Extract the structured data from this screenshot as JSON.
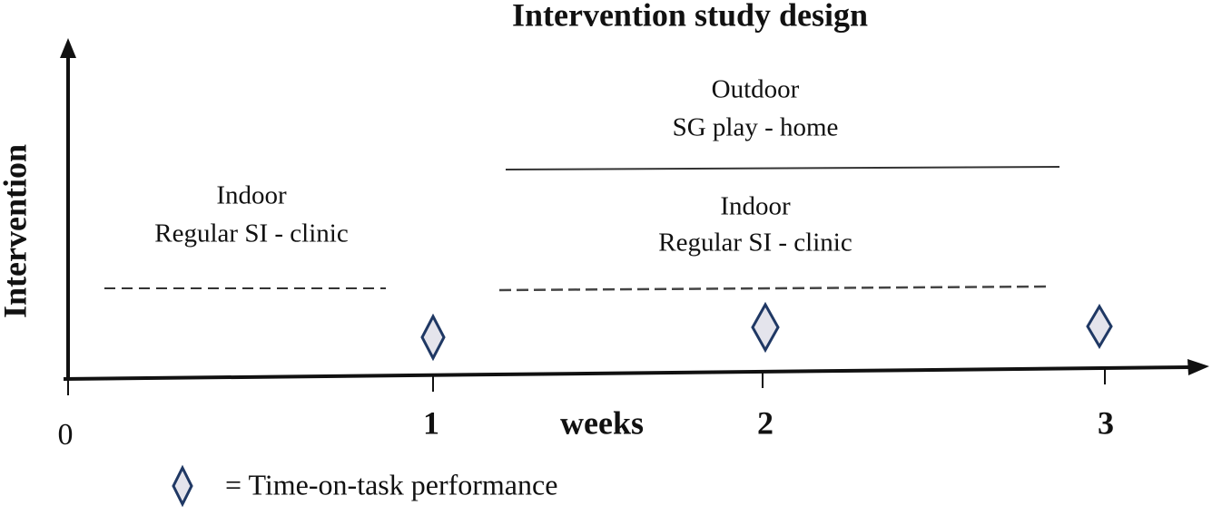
{
  "title": "Intervention study design",
  "y_axis_label": "Intervention",
  "x_axis": {
    "label": "weeks",
    "ticks": [
      0,
      1,
      2,
      3
    ]
  },
  "phases": [
    {
      "setting": "Indoor",
      "activity": "Regular SI - clinic"
    },
    {
      "setting": "Outdoor",
      "activity": "SG play - home"
    },
    {
      "setting": "Indoor",
      "activity": "Regular SI - clinic"
    }
  ],
  "legend": {
    "label": "= Time-on-task performance"
  }
}
